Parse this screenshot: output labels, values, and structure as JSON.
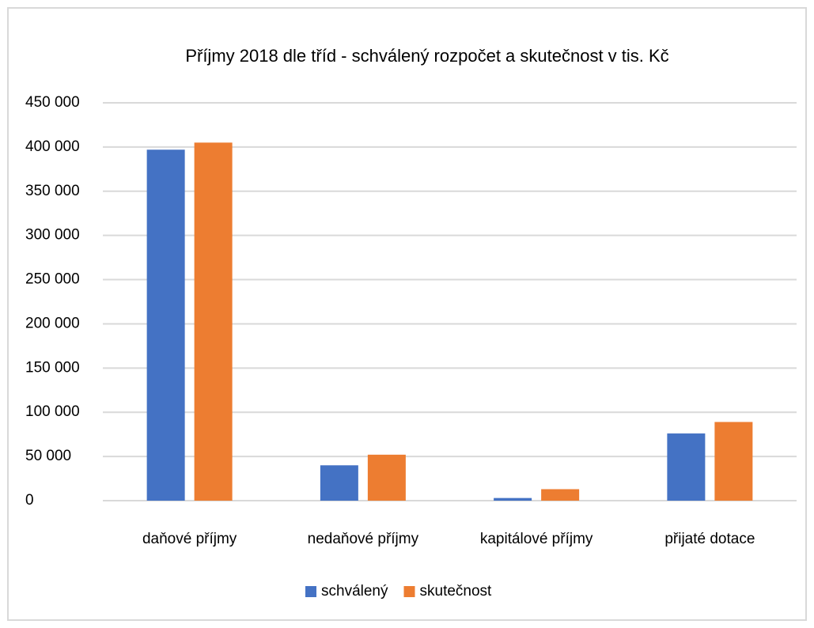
{
  "chart_data": {
    "type": "bar",
    "title": "Příjmy 2018 dle tříd - schválený rozpočet a skutečnost v tis. Kč",
    "categories": [
      "daňové příjmy",
      "nedaňové příjmy",
      "kapitálové příjmy",
      "přijaté dotace"
    ],
    "series": [
      {
        "name": "schválený",
        "color": "#4472c4",
        "values": [
          397000,
          40000,
          3000,
          76000
        ]
      },
      {
        "name": "skutečnost",
        "color": "#ed7d31",
        "values": [
          405000,
          52000,
          13000,
          89000
        ]
      }
    ],
    "ylim": [
      0,
      450000
    ],
    "yticks": [
      0,
      {
        "value": 50000,
        "label": "50 000"
      },
      {
        "value": 100000,
        "label": "100 000"
      },
      {
        "value": 150000,
        "label": "150 000"
      },
      {
        "value": 200000,
        "label": "200 000"
      },
      {
        "value": 250000,
        "label": "250 000"
      },
      {
        "value": 300000,
        "label": "300 000"
      },
      {
        "value": 350000,
        "label": "350 000"
      },
      {
        "value": 400000,
        "label": "400 000"
      },
      {
        "value": 450000,
        "label": "450 000"
      }
    ],
    "grid": true,
    "legend": "bottom"
  }
}
